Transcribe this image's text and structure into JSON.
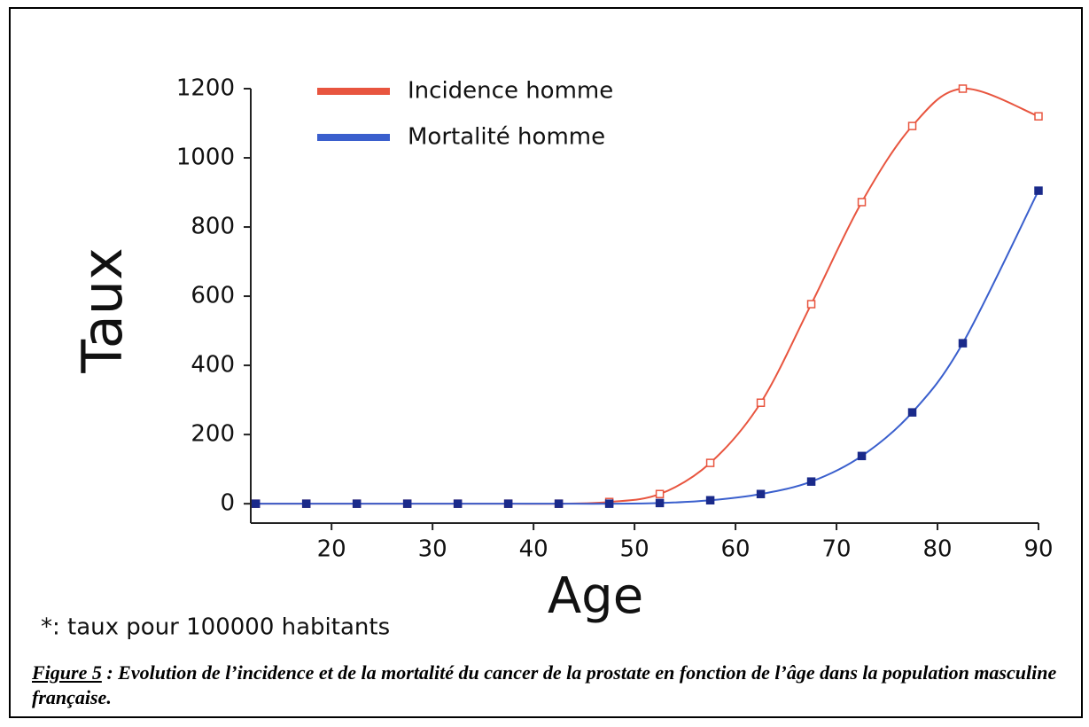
{
  "chart_data": {
    "type": "line",
    "x_label": "Age",
    "y_label": "Taux",
    "x": [
      12.5,
      17.5,
      22.5,
      27.5,
      32.5,
      37.5,
      42.5,
      47.5,
      52.5,
      57.5,
      62.5,
      67.5,
      72.5,
      77.5,
      82.5,
      90
    ],
    "series": [
      {
        "name": "Incidence homme",
        "color": "#e8553f",
        "values": [
          0,
          0,
          0,
          0,
          0,
          0,
          0,
          5,
          28,
          118,
          292,
          577,
          872,
          1092,
          1200,
          1120
        ]
      },
      {
        "name": "Mortalité homme",
        "color": "#3a5fcd",
        "values": [
          0,
          0,
          0,
          0,
          0,
          0,
          0,
          0,
          2,
          10,
          28,
          64,
          138,
          264,
          464,
          905
        ]
      }
    ],
    "xlim": [
      12,
      90
    ],
    "xticks": [
      20,
      30,
      40,
      50,
      60,
      70,
      80,
      90
    ],
    "ylim": [
      -56,
      1200
    ],
    "yticks": [
      0,
      200,
      400,
      600,
      800,
      1000,
      1200
    ],
    "legend": "top-left",
    "footnote": "*: taux pour 100000 habitants"
  },
  "caption": {
    "label": "Figure 5",
    "text": " : Evolution de l’incidence et de la mortalité du cancer de la prostate en fonction de l’âge dans la population masculine française."
  }
}
